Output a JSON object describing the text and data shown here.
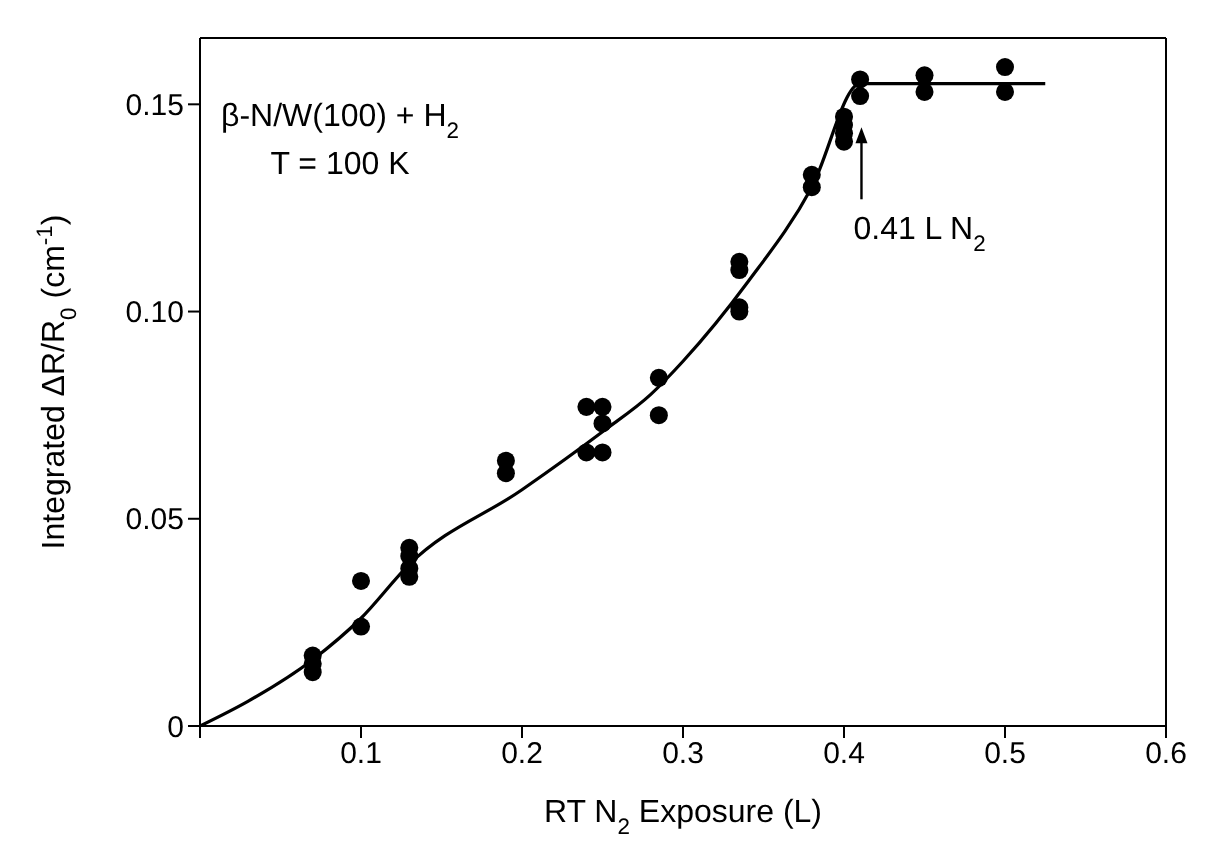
{
  "chart_data": {
    "type": "scatter",
    "xlabel": "RT N$_{2}$ Exposure (L)",
    "ylabel": "Integrated ΔR/R$_{0}$ (cm$^{-1}$)",
    "annotations": [
      "β-N/W(100) + H$_{2}$",
      "T = 100 K",
      {
        "text": "0.41 L N$_{2}$",
        "x": 0.41,
        "y": 0.145
      }
    ],
    "series": [
      {
        "marker": "circle",
        "color": "#000000",
        "x": [
          0.07,
          0.07,
          0.07,
          0.1,
          0.1,
          0.13,
          0.13,
          0.13,
          0.13,
          0.19,
          0.19,
          0.24,
          0.24,
          0.25,
          0.25,
          0.25,
          0.285,
          0.285,
          0.335,
          0.335,
          0.335,
          0.335,
          0.38,
          0.38,
          0.4,
          0.4,
          0.4,
          0.4,
          0.41,
          0.41,
          0.45,
          0.45,
          0.5,
          0.5
        ],
        "values": [
          0.017,
          0.015,
          0.013,
          0.035,
          0.024,
          0.043,
          0.041,
          0.038,
          0.036,
          0.064,
          0.061,
          0.077,
          0.066,
          0.077,
          0.073,
          0.066,
          0.084,
          0.075,
          0.112,
          0.11,
          0.101,
          0.1,
          0.133,
          0.13,
          0.147,
          0.145,
          0.143,
          0.141,
          0.156,
          0.152,
          0.157,
          0.153,
          0.159,
          0.153
        ]
      },
      {
        "type": "line",
        "marker": "none",
        "color": "#000000",
        "x": [
          0,
          0.03,
          0.07,
          0.1,
          0.13,
          0.2,
          0.25,
          0.28,
          0.3,
          0.34,
          0.38,
          0.41,
          0.45,
          0.5,
          0.525
        ],
        "values": [
          0,
          0.006,
          0.016,
          0.026,
          0.039,
          0.057,
          0.071,
          0.08,
          0.088,
          0.107,
          0.13,
          0.155,
          0.155,
          0.155,
          0.155
        ]
      }
    ],
    "xlim": [
      0,
      0.6
    ],
    "xticks": [
      {
        "value": 0,
        "label": null
      },
      0.1,
      0.2,
      0.3,
      0.4,
      0.5,
      0.6
    ],
    "ylim": [
      0,
      0.166
    ],
    "yticks": [
      0,
      {
        "value": 0.05,
        "label": "0.05"
      },
      {
        "value": 0.1,
        "label": "0.10"
      },
      0.15
    ],
    "grid": false,
    "line_style": "solid"
  }
}
